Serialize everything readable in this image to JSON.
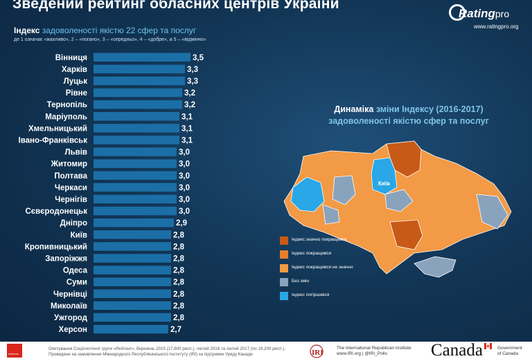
{
  "header": {
    "title": "Зведений рейтинг обласних центрів України",
    "logo_name": "Rating",
    "logo_suffix": "pro",
    "logo_url": "www.ratingpro.org"
  },
  "chart_header": {
    "title_bold": "Індекс",
    "title_rest": "задоволеності якістю 22 сфер та послуг",
    "scale_note": "де 1 означає «жахливо», 2 – «погано», 3 – «середньо», 4 – «добре», а 5 – «відмінно»"
  },
  "chart_data": {
    "type": "bar",
    "orientation": "horizontal",
    "categories": [
      "Вінниця",
      "Харків",
      "Луцьк",
      "Рівне",
      "Тернопіль",
      "Маріуполь",
      "Хмельницький",
      "Івано-Франківськ",
      "Львів",
      "Житомир",
      "Полтава",
      "Черкаси",
      "Чернігів",
      "Сєвєродонецьк",
      "Дніпро",
      "Київ",
      "Кропивницький",
      "Запоріжжя",
      "Одеса",
      "Суми",
      "Чернівці",
      "Миколаїв",
      "Ужгород",
      "Херсон"
    ],
    "values": [
      3.5,
      3.3,
      3.3,
      3.2,
      3.2,
      3.1,
      3.1,
      3.1,
      3.0,
      3.0,
      3.0,
      3.0,
      3.0,
      3.0,
      2.9,
      2.8,
      2.8,
      2.8,
      2.8,
      2.8,
      2.8,
      2.8,
      2.8,
      2.7
    ],
    "value_labels": [
      "3,5",
      "3,3",
      "3,3",
      "3,2",
      "3,2",
      "3,1",
      "3,1",
      "3,1",
      "3,0",
      "3,0",
      "3,0",
      "3,0",
      "3,0",
      "3,0",
      "2,9",
      "2,8",
      "2,8",
      "2,8",
      "2,8",
      "2,8",
      "2,8",
      "2,8",
      "2,8",
      "2,7"
    ],
    "bar_color": "#1b6fa6"
  },
  "dynamics": {
    "title_bold": "Динаміка",
    "title_rest": "зміни Індексу (2016-2017)",
    "title_line2": "задоволеності якістю сфер та послуг",
    "kyiv_label": "Київ",
    "legend": [
      {
        "label": "Індекс значно покращився",
        "color": "#c85a18"
      },
      {
        "label": "Індекс покращився",
        "color": "#e57e2d"
      },
      {
        "label": "Індекс покращився не значно",
        "color": "#f29a45"
      },
      {
        "label": "Без змін",
        "color": "#8aa3bd"
      },
      {
        "label": "Індекс погіршився",
        "color": "#2aa7e6"
      }
    ]
  },
  "footer": {
    "rl_logo": "reformer",
    "note_line1": "Опитування Соціологічної групи «Рейтинг», березень 2015 (17,600 респ.), лютий 2016 та лютий 2017 (по 19,200 респ.).",
    "note_line2": "Проведене на замовлення Міжнародного Республіканського Інституту (IRI) за підтримки Уряду Канади",
    "iri_abbr": "IRI",
    "iri_line1": "The International Republican Institute",
    "iri_line2": "www.IRI.org | @IRI_Polls",
    "canada": "Canada",
    "gov_line1": "Government",
    "gov_line2": "of Canada"
  }
}
